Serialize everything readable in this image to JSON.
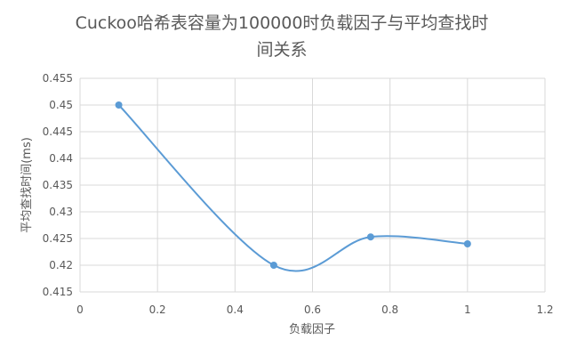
{
  "chart_data": {
    "type": "scatter",
    "title_lines": [
      "Cuckoo哈希表容量为100000时负载因子与平均查找时",
      "间关系"
    ],
    "xlabel": "负载因子",
    "ylabel": "平均查找时间(ms)",
    "xlim": [
      0,
      1.2
    ],
    "ylim": [
      0.415,
      0.455
    ],
    "x_ticks": [
      "0",
      "0.2",
      "0.4",
      "0.6",
      "0.8",
      "1",
      "1.2"
    ],
    "y_ticks": [
      "0.415",
      "0.42",
      "0.425",
      "0.43",
      "0.435",
      "0.44",
      "0.445",
      "0.45",
      "0.455"
    ],
    "grid": true,
    "smooth": true,
    "series": [
      {
        "color": "#5b9bd5",
        "x": [
          0.1,
          0.5,
          0.75,
          1.0
        ],
        "y": [
          0.45,
          0.42,
          0.4253,
          0.424
        ]
      }
    ]
  }
}
